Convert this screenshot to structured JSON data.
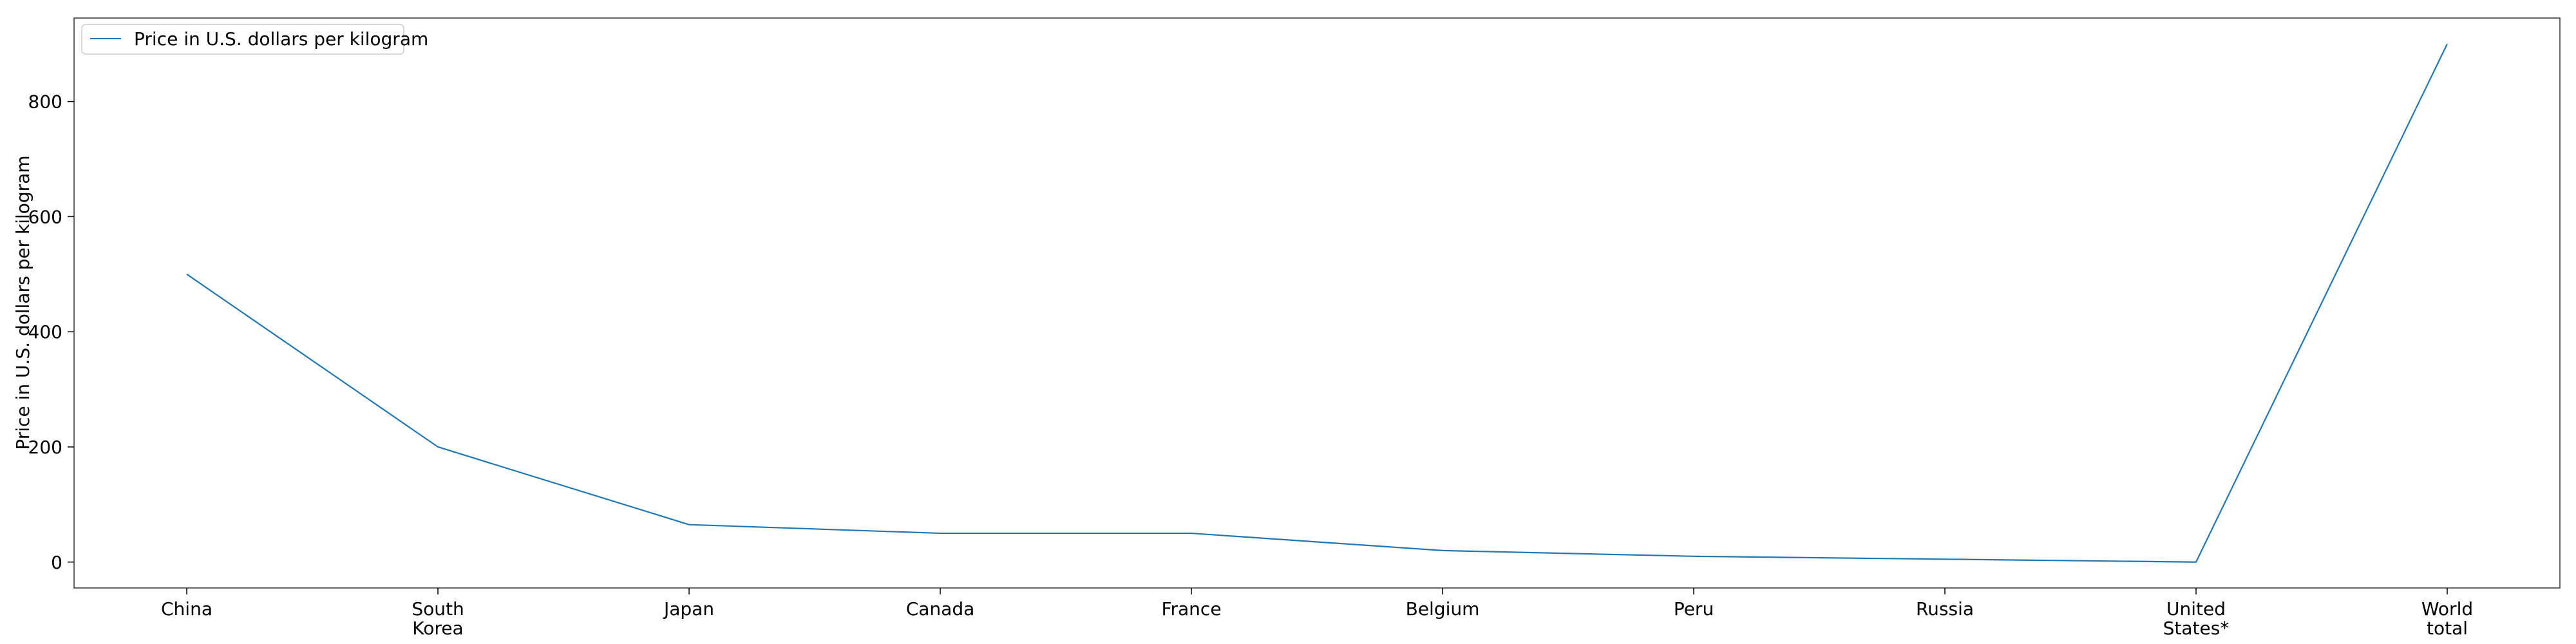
{
  "chart_data": {
    "type": "line",
    "title": "",
    "xlabel": "",
    "ylabel": "Price in U.S. dollars per kilogram",
    "categories": [
      [
        "China"
      ],
      [
        "South",
        "Korea"
      ],
      [
        "Japan"
      ],
      [
        "Canada"
      ],
      [
        "France"
      ],
      [
        "Belgium"
      ],
      [
        "Peru"
      ],
      [
        "Russia"
      ],
      [
        "United",
        "States*"
      ],
      [
        "World",
        "total"
      ]
    ],
    "series": [
      {
        "name": "Price in U.S. dollars per kilogram",
        "color": "#1f77b4",
        "values": [
          500,
          200,
          65,
          50,
          50,
          20,
          10,
          5,
          0,
          900
        ]
      }
    ],
    "ylim": [
      -45,
      945
    ],
    "yticks": [
      0,
      200,
      400,
      600,
      800
    ],
    "grid": false,
    "legend_position": "top-left"
  }
}
